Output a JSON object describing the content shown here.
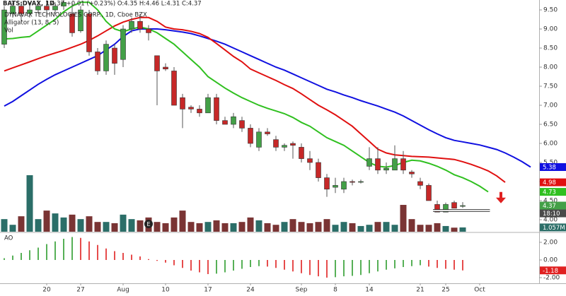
{
  "chart_data": {
    "type": "candlestick",
    "title": "BATS:DVAX, 1D",
    "quote": "4.37 +0.01 (+0.23%) O:4.35 H:4.46 L:4.31 C:4.37",
    "subtitle": "DYNAVAX TECHNOLOGIES CORP., 1D, Cboe BZX",
    "x": [
      0,
      1,
      2,
      3,
      4,
      5,
      6,
      7,
      8,
      9,
      10,
      11,
      12,
      13,
      14,
      15,
      16,
      17,
      18,
      19,
      20,
      21,
      22,
      23,
      24,
      25,
      26,
      27,
      28,
      29,
      30,
      31,
      32,
      33,
      34,
      35,
      36,
      37,
      38,
      39,
      40,
      41,
      42,
      43,
      44,
      45,
      46,
      47,
      48,
      49,
      50,
      51,
      52,
      53,
      54
    ],
    "open": [
      8.6,
      9.4,
      9.6,
      9.4,
      9.5,
      9.6,
      9.5,
      9.6,
      9.4,
      8.95,
      9.4,
      8.4,
      7.9,
      8.5,
      8.2,
      9.0,
      9.2,
      9.0,
      8.3,
      8.0,
      7.9,
      7.2,
      6.95,
      6.9,
      6.8,
      7.2,
      6.6,
      6.5,
      6.6,
      6.4,
      5.9,
      6.3,
      6.1,
      5.9,
      6.0,
      5.9,
      5.6,
      5.5,
      5.1,
      4.85,
      4.8,
      5.0,
      5.0,
      5.4,
      5.6,
      5.3,
      5.3,
      5.6,
      5.25,
      5.0,
      4.9,
      4.4,
      4.2,
      4.45,
      4.35
    ],
    "high": [
      9.6,
      9.7,
      9.7,
      9.7,
      9.75,
      9.75,
      9.7,
      9.8,
      9.7,
      9.6,
      9.5,
      8.5,
      8.7,
      8.6,
      9.1,
      9.3,
      9.4,
      9.1,
      8.3,
      8.1,
      8.0,
      7.3,
      7.0,
      7.0,
      7.3,
      7.3,
      6.7,
      6.8,
      6.7,
      6.5,
      6.4,
      6.4,
      6.2,
      6.0,
      6.05,
      6.0,
      5.8,
      5.6,
      5.2,
      5.1,
      5.1,
      5.05,
      5.05,
      5.9,
      5.9,
      5.5,
      5.95,
      5.8,
      5.3,
      5.1,
      4.95,
      4.5,
      4.45,
      4.5,
      4.46
    ],
    "low": [
      8.5,
      9.3,
      9.2,
      9.3,
      9.4,
      9.3,
      9.4,
      9.5,
      8.8,
      8.9,
      8.3,
      7.8,
      7.8,
      7.8,
      8.0,
      8.9,
      8.9,
      8.7,
      7.0,
      7.9,
      7.0,
      6.4,
      6.8,
      6.7,
      6.8,
      6.5,
      6.5,
      6.4,
      6.3,
      5.9,
      5.8,
      6.2,
      5.8,
      5.8,
      5.6,
      5.5,
      5.3,
      5.0,
      4.6,
      4.7,
      4.7,
      4.9,
      4.95,
      5.3,
      5.2,
      5.2,
      5.3,
      5.2,
      5.1,
      4.8,
      4.5,
      4.2,
      4.2,
      4.3,
      4.31
    ],
    "close": [
      9.5,
      9.6,
      9.4,
      9.5,
      9.6,
      9.5,
      9.6,
      9.7,
      8.9,
      9.5,
      8.4,
      7.9,
      8.6,
      8.1,
      9.0,
      9.2,
      9.0,
      8.9,
      7.9,
      7.95,
      7.0,
      6.9,
      6.9,
      6.8,
      7.2,
      6.6,
      6.5,
      6.7,
      6.4,
      6.0,
      6.3,
      6.25,
      5.9,
      5.95,
      5.95,
      5.6,
      5.5,
      5.1,
      4.8,
      4.9,
      5.0,
      4.98,
      5.0,
      5.6,
      5.3,
      5.35,
      5.6,
      5.3,
      5.2,
      4.9,
      4.5,
      4.2,
      4.4,
      4.3,
      4.37
    ],
    "close_label": "4.37",
    "countdown": "18:10",
    "up_color": "#43a047",
    "down_color": "#c62828",
    "ylim": [
      3.685,
      9.76
    ],
    "yticks": [
      {
        "value": 9.5,
        "label": "9.50"
      },
      {
        "value": 9,
        "label": "9.00"
      },
      {
        "value": 8.5,
        "label": "8.50"
      },
      {
        "value": 8,
        "label": "8.00"
      },
      {
        "value": 7.5,
        "label": "7.50"
      },
      {
        "value": 7,
        "label": "7.00"
      },
      {
        "value": 6.5,
        "label": "6.50"
      },
      {
        "value": 6,
        "label": "6.00"
      },
      {
        "value": 5.5,
        "label": "5.50"
      },
      {
        "value": 5,
        "label": "5.00"
      },
      {
        "value": 4.5,
        "label": "4.50"
      },
      {
        "value": 4,
        "label": "4.00"
      }
    ],
    "xlim": [
      -0.5,
      63
    ],
    "xticks": [
      {
        "value": 5,
        "label": "20"
      },
      {
        "value": 9,
        "label": "27"
      },
      {
        "value": 14,
        "label": "Aug"
      },
      {
        "value": 19,
        "label": "10"
      },
      {
        "value": 24,
        "label": "17"
      },
      {
        "value": 29,
        "label": "24"
      },
      {
        "value": 35,
        "label": "Sep"
      },
      {
        "value": 39,
        "label": "8"
      },
      {
        "value": 43,
        "label": "14"
      },
      {
        "value": 49,
        "label": "21"
      },
      {
        "value": 52,
        "label": "25"
      },
      {
        "value": 56,
        "label": "Oct"
      }
    ],
    "overlay": {
      "name": "Alligator (13, 8, 5)",
      "series": [
        {
          "color": "#1010e0",
          "last_label": "5.38",
          "x": [
            0,
            1,
            2,
            3,
            4,
            5,
            6,
            7,
            8,
            9,
            10,
            11,
            12,
            13,
            14,
            15,
            16,
            17,
            18,
            19,
            20,
            21,
            22,
            23,
            24,
            25,
            26,
            27,
            28,
            29,
            30,
            31,
            32,
            33,
            34,
            35,
            36,
            37,
            38,
            39,
            40,
            41,
            42,
            43,
            44,
            45,
            46,
            47,
            48,
            49,
            50,
            51,
            52,
            53,
            54,
            55,
            56,
            57,
            58,
            59,
            60,
            61,
            62
          ],
          "values": [
            6.98,
            7.1,
            7.25,
            7.4,
            7.55,
            7.68,
            7.8,
            7.9,
            8.0,
            8.1,
            8.2,
            8.3,
            8.45,
            8.6,
            8.8,
            8.95,
            9.0,
            9.0,
            9.0,
            8.98,
            8.95,
            8.92,
            8.88,
            8.82,
            8.75,
            8.68,
            8.6,
            8.5,
            8.4,
            8.3,
            8.2,
            8.1,
            8.0,
            7.92,
            7.82,
            7.72,
            7.62,
            7.52,
            7.42,
            7.35,
            7.27,
            7.2,
            7.12,
            7.05,
            6.98,
            6.9,
            6.82,
            6.72,
            6.6,
            6.48,
            6.36,
            6.25,
            6.15,
            6.08,
            6.04,
            6.0,
            5.96,
            5.9,
            5.84,
            5.75,
            5.64,
            5.52,
            5.38
          ]
        },
        {
          "color": "#e01010",
          "last_label": "4.98",
          "x": [
            0,
            1,
            2,
            3,
            4,
            5,
            6,
            7,
            8,
            9,
            10,
            11,
            12,
            13,
            14,
            15,
            16,
            17,
            18,
            19,
            20,
            21,
            22,
            23,
            24,
            25,
            26,
            27,
            28,
            29,
            30,
            31,
            32,
            33,
            34,
            35,
            36,
            37,
            38,
            39,
            40,
            41,
            42,
            43,
            44,
            45,
            46,
            47,
            48,
            49,
            50,
            51,
            52,
            53,
            54,
            55,
            56,
            57,
            58,
            59
          ],
          "values": [
            7.9,
            7.98,
            8.06,
            8.14,
            8.22,
            8.3,
            8.37,
            8.44,
            8.52,
            8.6,
            8.7,
            8.82,
            8.95,
            9.08,
            9.18,
            9.25,
            9.3,
            9.3,
            9.2,
            9.05,
            9.0,
            8.98,
            8.94,
            8.88,
            8.78,
            8.62,
            8.45,
            8.28,
            8.14,
            7.95,
            7.85,
            7.75,
            7.65,
            7.54,
            7.44,
            7.3,
            7.15,
            7.0,
            6.88,
            6.75,
            6.6,
            6.45,
            6.25,
            6.05,
            5.85,
            5.75,
            5.7,
            5.68,
            5.66,
            5.65,
            5.64,
            5.62,
            5.6,
            5.58,
            5.52,
            5.45,
            5.37,
            5.28,
            5.15,
            4.98
          ]
        },
        {
          "color": "#30c020",
          "last_label": "4.73",
          "x": [
            0,
            1,
            2,
            3,
            4,
            5,
            6,
            7,
            8,
            9,
            10,
            11,
            12,
            13,
            14,
            15,
            16,
            17,
            18,
            19,
            20,
            21,
            22,
            23,
            24,
            25,
            26,
            27,
            28,
            29,
            30,
            31,
            32,
            33,
            34,
            35,
            36,
            37,
            38,
            39,
            40,
            41,
            42,
            43,
            44,
            45,
            46,
            47,
            48,
            49,
            50,
            51,
            52,
            53,
            54,
            55,
            56,
            57
          ],
          "values": [
            8.74,
            8.75,
            8.78,
            8.8,
            8.95,
            9.1,
            9.25,
            9.45,
            9.6,
            9.7,
            9.7,
            9.5,
            9.2,
            9.0,
            8.93,
            9.0,
            9.05,
            9.0,
            8.9,
            8.75,
            8.6,
            8.4,
            8.2,
            8.0,
            7.75,
            7.6,
            7.45,
            7.32,
            7.2,
            7.1,
            7.0,
            6.92,
            6.85,
            6.78,
            6.68,
            6.55,
            6.45,
            6.3,
            6.15,
            6.05,
            5.95,
            5.8,
            5.65,
            5.5,
            5.4,
            5.38,
            5.42,
            5.5,
            5.56,
            5.54,
            5.48,
            5.4,
            5.3,
            5.18,
            5.1,
            5.0,
            4.88,
            4.73
          ]
        }
      ]
    },
    "volume": {
      "name": "Vol",
      "values": [
        3.1,
        1.7,
        3.8,
        13.9,
        3.1,
        5.2,
        4.5,
        3.5,
        4.2,
        3.1,
        3.8,
        2.4,
        2.4,
        2.1,
        4.2,
        3.1,
        2.8,
        3.5,
        2.4,
        2.1,
        3.5,
        5.2,
        2.4,
        2.1,
        2.4,
        2.8,
        2.1,
        2.1,
        2.4,
        3.5,
        2.8,
        2.1,
        1.7,
        2.4,
        3.1,
        2.4,
        2.1,
        2.4,
        3.1,
        1.7,
        2.4,
        2.1,
        1.4,
        1.7,
        2.4,
        2.4,
        1.7,
        6.6,
        3.1,
        1.7,
        1.7,
        2.1,
        1.4,
        1.0,
        1.057
      ],
      "last_label": "1.057M",
      "up_color": "#2b6e68",
      "down_color": "#7a3434",
      "ylim": [
        0,
        57
      ]
    },
    "ao": {
      "name": "AO",
      "values": [
        0.2,
        0.5,
        0.8,
        1.1,
        1.4,
        1.8,
        2.1,
        2.4,
        2.6,
        2.5,
        2.1,
        1.7,
        1.3,
        1.0,
        0.8,
        0.6,
        0.4,
        0.1,
        -0.1,
        -0.3,
        -0.6,
        -0.9,
        -1.2,
        -1.4,
        -1.6,
        -1.55,
        -1.4,
        -1.2,
        -1.0,
        -0.8,
        -0.7,
        -0.75,
        -0.9,
        -1.1,
        -1.3,
        -1.5,
        -1.7,
        -1.85,
        -2.0,
        -1.95,
        -1.85,
        -1.8,
        -1.7,
        -1.5,
        -1.3,
        -1.1,
        -0.95,
        -0.8,
        -0.7,
        -0.6,
        -0.75,
        -0.9,
        -1.0,
        -1.1,
        -1.18
      ],
      "last_label": "-1.18",
      "up_color": "#2e9d2e",
      "down_color": "#e02020",
      "ylim": [
        -2.64,
        3.04
      ],
      "yticks": [
        {
          "value": 2,
          "label": "2.00"
        },
        {
          "value": 0,
          "label": "0.00"
        },
        {
          "value": -2,
          "label": "-2.00"
        }
      ]
    },
    "annotations": {
      "earnings": {
        "x": 17,
        "label": "E"
      },
      "support_line": {
        "price": 4.24,
        "x": [
          50.5,
          57.2
        ],
        "color": "#ffffff"
      },
      "arrow": {
        "x": 58.5,
        "price": 4.43,
        "color": "#e02020"
      }
    }
  }
}
